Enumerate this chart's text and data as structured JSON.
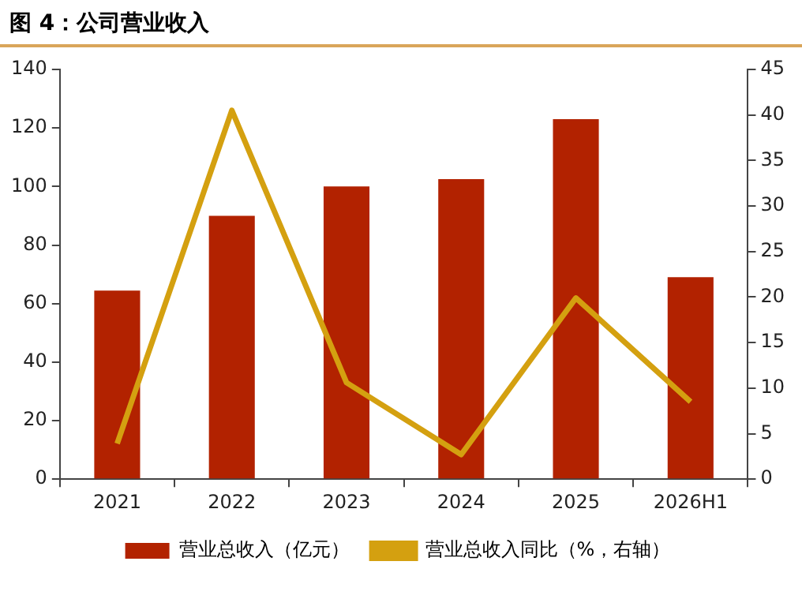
{
  "chart_data": {
    "type": "bar",
    "title": "图 4：公司营业收入",
    "categories": [
      "2021",
      "2022",
      "2023",
      "2024",
      "2025",
      "2026H1"
    ],
    "series": [
      {
        "name": "营业总收入（亿元）",
        "color": "#b22200",
        "values": [
          64.4,
          90,
          100,
          102.5,
          123,
          69
        ]
      },
      {
        "name": "营业总收入同比（%，右轴）",
        "type": "line",
        "axis": "y2",
        "color": "#d4a010",
        "values": [
          3.9,
          40.5,
          10.6,
          2.7,
          19.9,
          8.5
        ]
      }
    ],
    "ylim": [
      0,
      140
    ],
    "yticks": [
      0,
      20,
      40,
      60,
      80,
      100,
      120,
      140
    ],
    "y2lim": [
      0,
      45
    ],
    "y2ticks": [
      0,
      5,
      10,
      15,
      20,
      25,
      30,
      35,
      40,
      45
    ],
    "grid": false,
    "legend": "bottom",
    "marker": "none",
    "line_style": "solid"
  }
}
